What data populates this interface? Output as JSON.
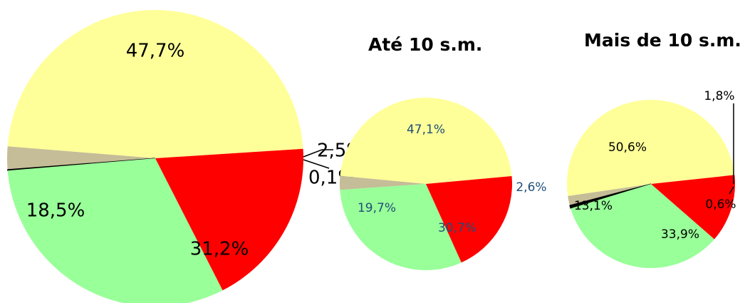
{
  "chart_data": [
    {
      "type": "pie",
      "title": "",
      "slices": [
        {
          "label": "47,7%",
          "value": 47.7,
          "color": "#ffff99"
        },
        {
          "label": "2,5%",
          "value": 2.5,
          "color": "#c4bd97"
        },
        {
          "label": "0,1%",
          "value": 0.1,
          "color": "#000000"
        },
        {
          "label": "31,2%",
          "value": 31.2,
          "color": "#99ff99"
        },
        {
          "label": "18,5%",
          "value": 18.5,
          "color": "#ff0000"
        }
      ]
    },
    {
      "type": "pie",
      "title": "Até 10 s.m.",
      "slices": [
        {
          "label": "47,1%",
          "value": 47.1,
          "color": "#ffff99"
        },
        {
          "label": "2,6%",
          "value": 2.6,
          "color": "#c4bd97"
        },
        {
          "label": "",
          "value": 0.0,
          "color": "#000000"
        },
        {
          "label": "30,7%",
          "value": 30.7,
          "color": "#99ff99"
        },
        {
          "label": "19,7%",
          "value": 19.7,
          "color": "#ff0000"
        }
      ]
    },
    {
      "type": "pie",
      "title": "Mais de 10 s.m.",
      "slices": [
        {
          "label": "50,6%",
          "value": 50.6,
          "color": "#ffff99"
        },
        {
          "label": "1,8%",
          "value": 1.8,
          "color": "#c4bd97"
        },
        {
          "label": "0,6%",
          "value": 0.6,
          "color": "#000000"
        },
        {
          "label": "33,9%",
          "value": 33.9,
          "color": "#99ff99"
        },
        {
          "label": "13,1%",
          "value": 13.1,
          "color": "#ff0000"
        }
      ]
    }
  ]
}
